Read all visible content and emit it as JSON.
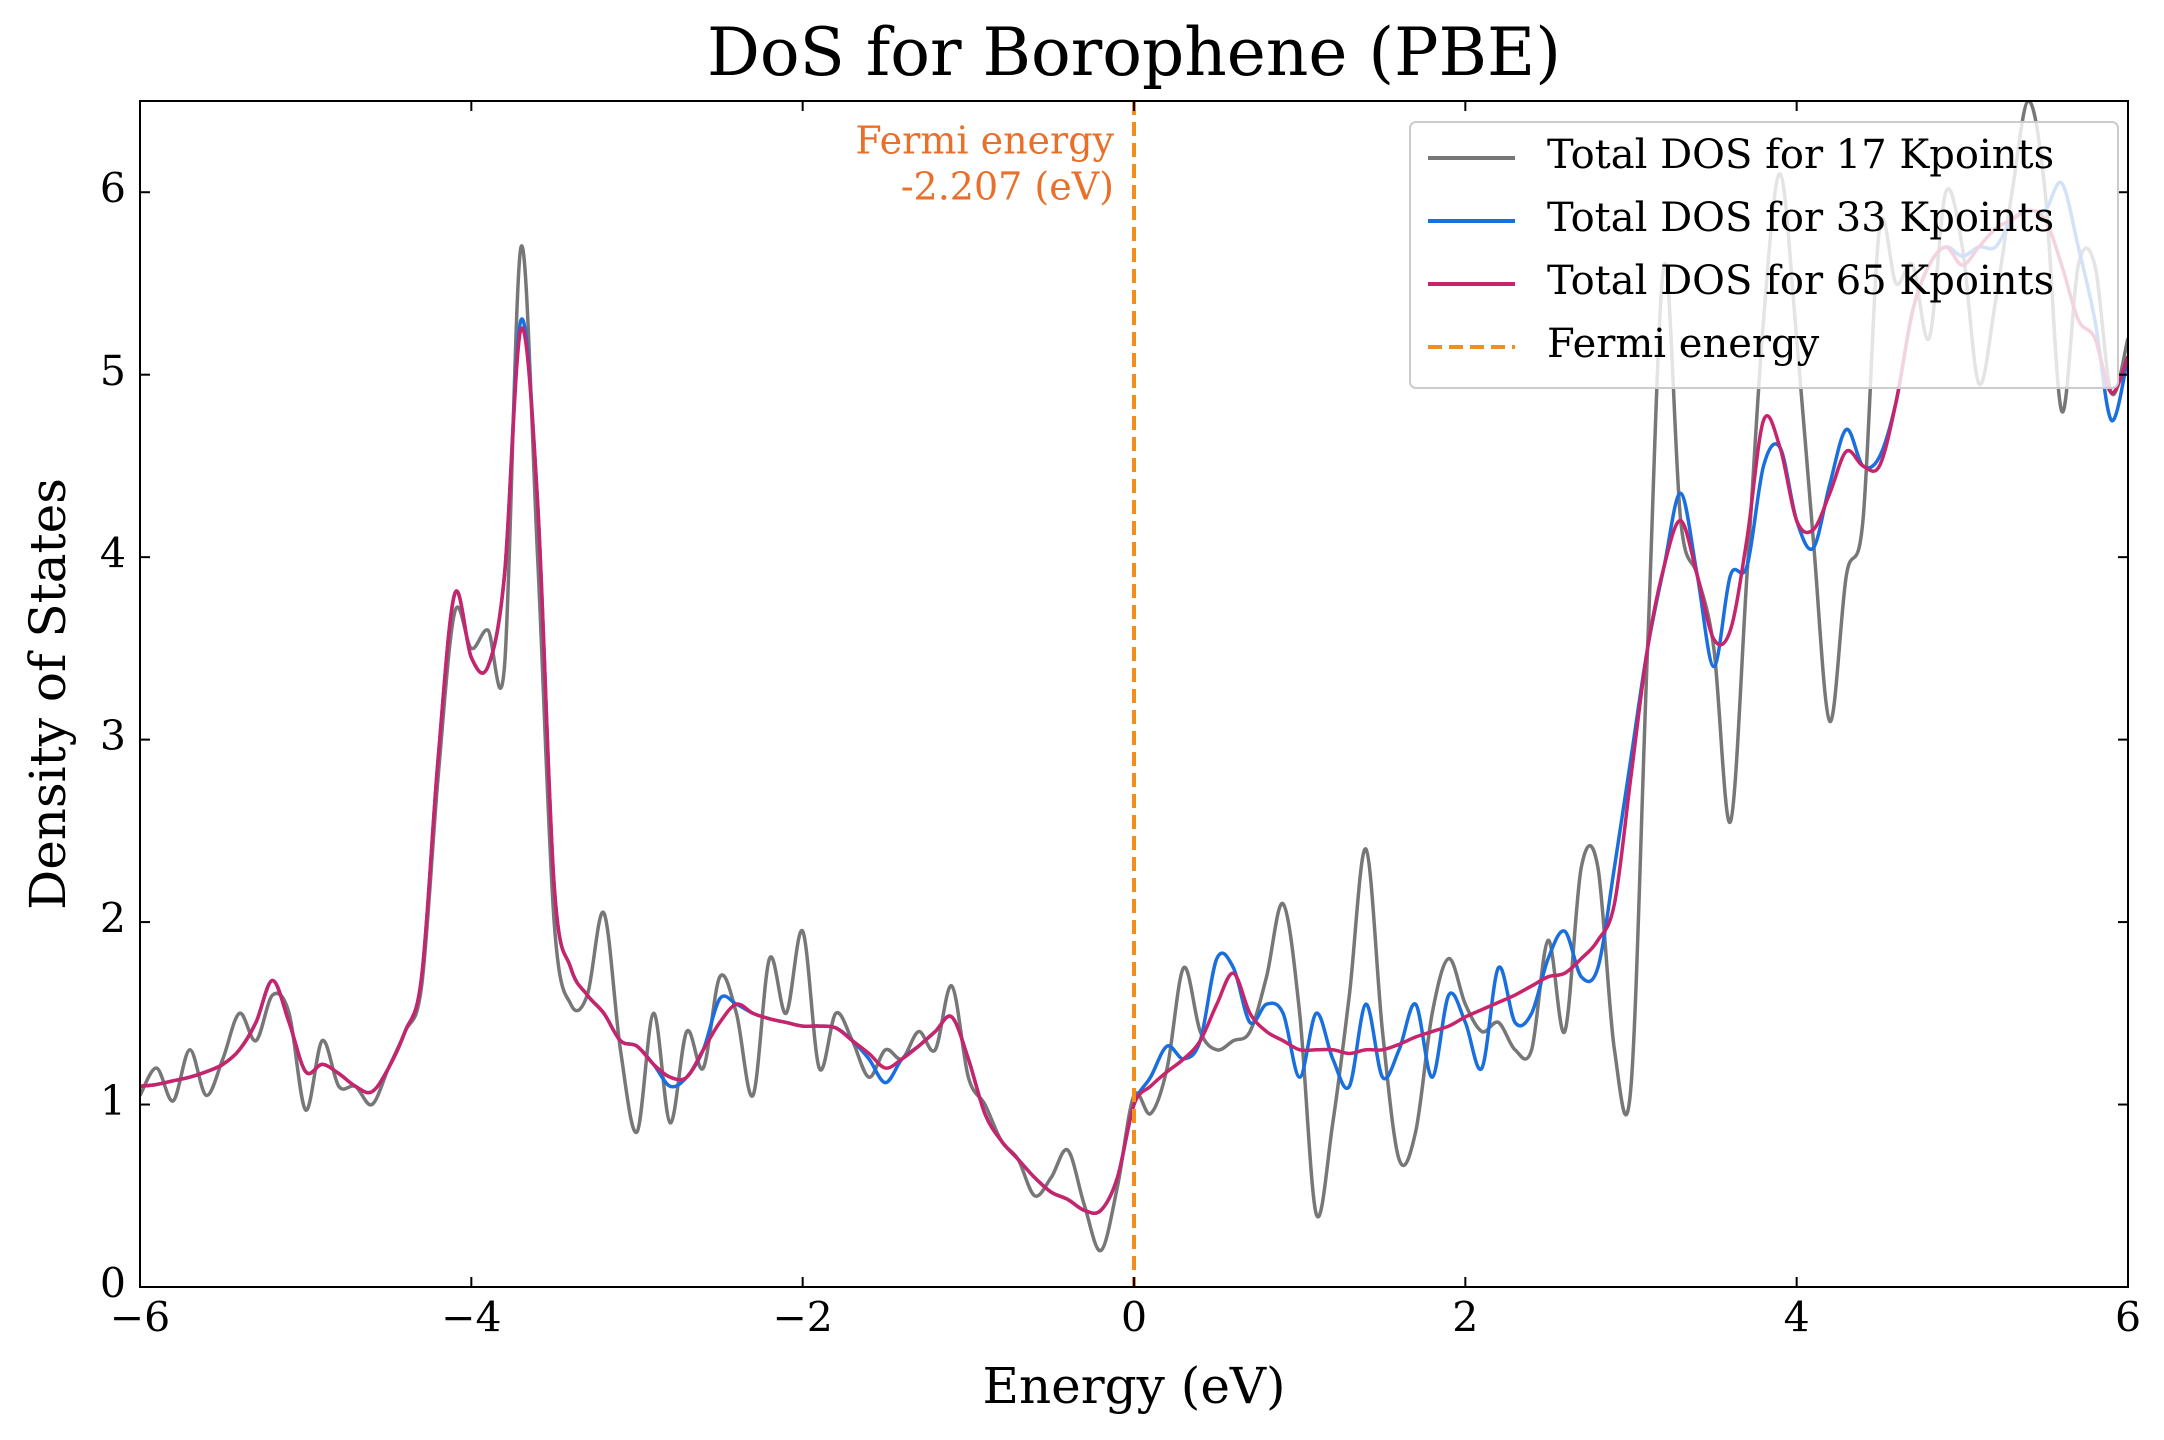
{
  "chart_data": {
    "type": "line",
    "title": "DoS for Borophene (PBE)",
    "x_label": "Energy (eV)",
    "y_label": "Density of States",
    "x": [
      -6,
      -5.9,
      -5.8,
      -5.7,
      -5.6,
      -5.5,
      -5.4,
      -5.3,
      -5.2,
      -5.1,
      -5,
      -4.9,
      -4.8,
      -4.7,
      -4.6,
      -4.5,
      -4.4,
      -4.3,
      -4.2,
      -4.1,
      -4,
      -3.9,
      -3.8,
      -3.7,
      -3.6,
      -3.5,
      -3.4,
      -3.3,
      -3.2,
      -3.1,
      -3,
      -2.9,
      -2.8,
      -2.7,
      -2.6,
      -2.5,
      -2.4,
      -2.3,
      -2.2,
      -2.1,
      -2,
      -1.9,
      -1.8,
      -1.7,
      -1.6,
      -1.5,
      -1.4,
      -1.3,
      -1.2,
      -1.1,
      -1,
      -0.9,
      -0.8,
      -0.7,
      -0.6,
      -0.5,
      -0.4,
      -0.3,
      -0.2,
      -0.1,
      0,
      0.1,
      0.2,
      0.3,
      0.4,
      0.5,
      0.6,
      0.7,
      0.8,
      0.9,
      1,
      1.1,
      1.2,
      1.3,
      1.4,
      1.5,
      1.6,
      1.7,
      1.8,
      1.9,
      2,
      2.1,
      2.2,
      2.3,
      2.4,
      2.5,
      2.6,
      2.7,
      2.8,
      2.9,
      3,
      3.1,
      3.2,
      3.3,
      3.4,
      3.5,
      3.6,
      3.7,
      3.8,
      3.9,
      4,
      4.1,
      4.2,
      4.3,
      4.4,
      4.5,
      4.6,
      4.7,
      4.8,
      4.9,
      5,
      5.1,
      5.2,
      5.3,
      5.4,
      5.5,
      5.6,
      5.7,
      5.8,
      5.9,
      6
    ],
    "series": [
      {
        "name": "Total DOS for 17 Kpoints",
        "color": "#777777",
        "values": [
          1.05,
          1.2,
          1.02,
          1.3,
          1.05,
          1.25,
          1.5,
          1.35,
          1.6,
          1.5,
          0.97,
          1.35,
          1.1,
          1.1,
          1.0,
          1.2,
          1.4,
          1.65,
          2.8,
          3.7,
          3.5,
          3.6,
          3.4,
          5.7,
          4.0,
          2.0,
          1.55,
          1.6,
          2.05,
          1.3,
          0.85,
          1.5,
          0.9,
          1.4,
          1.2,
          1.7,
          1.5,
          1.05,
          1.8,
          1.5,
          1.95,
          1.2,
          1.5,
          1.35,
          1.15,
          1.3,
          1.25,
          1.4,
          1.3,
          1.65,
          1.15,
          1.0,
          0.8,
          0.7,
          0.5,
          0.6,
          0.75,
          0.45,
          0.2,
          0.55,
          1.05,
          0.95,
          1.2,
          1.75,
          1.4,
          1.3,
          1.35,
          1.4,
          1.7,
          2.1,
          1.5,
          0.4,
          0.9,
          1.6,
          2.4,
          1.4,
          0.7,
          0.85,
          1.5,
          1.8,
          1.55,
          1.4,
          1.45,
          1.3,
          1.3,
          1.9,
          1.4,
          2.3,
          2.3,
          1.3,
          1.1,
          3.5,
          5.6,
          4.2,
          3.9,
          3.5,
          2.55,
          3.9,
          5.3,
          6.1,
          5.2,
          4.1,
          3.1,
          3.9,
          4.2,
          5.8,
          5.5,
          5.6,
          5.2,
          6.0,
          5.7,
          4.95,
          5.4,
          6.0,
          6.5,
          6.0,
          4.8,
          5.6,
          5.6,
          4.9,
          5.2
        ]
      },
      {
        "name": "Total DOS for 33 Kpoints",
        "color": "#1a6fdf",
        "values": [
          1.1,
          1.11,
          1.13,
          1.15,
          1.18,
          1.22,
          1.3,
          1.45,
          1.68,
          1.45,
          1.18,
          1.22,
          1.17,
          1.1,
          1.07,
          1.2,
          1.4,
          1.7,
          2.9,
          3.8,
          3.45,
          3.4,
          3.9,
          5.3,
          4.3,
          2.2,
          1.75,
          1.6,
          1.5,
          1.35,
          1.32,
          1.22,
          1.1,
          1.15,
          1.3,
          1.58,
          1.55,
          1.5,
          1.47,
          1.45,
          1.43,
          1.43,
          1.42,
          1.35,
          1.25,
          1.12,
          1.25,
          1.32,
          1.4,
          1.48,
          1.25,
          0.95,
          0.8,
          0.7,
          0.6,
          0.52,
          0.48,
          0.42,
          0.42,
          0.6,
          1.0,
          1.15,
          1.32,
          1.25,
          1.35,
          1.8,
          1.75,
          1.45,
          1.55,
          1.5,
          1.15,
          1.5,
          1.25,
          1.1,
          1.55,
          1.15,
          1.3,
          1.55,
          1.15,
          1.6,
          1.45,
          1.2,
          1.75,
          1.45,
          1.5,
          1.8,
          1.95,
          1.7,
          1.75,
          2.3,
          2.9,
          3.5,
          3.95,
          4.35,
          3.9,
          3.4,
          3.9,
          3.95,
          4.5,
          4.6,
          4.2,
          4.05,
          4.4,
          4.7,
          4.5,
          4.55,
          4.85,
          5.35,
          5.6,
          5.7,
          5.65,
          5.7,
          5.7,
          5.85,
          5.9,
          5.9,
          6.05,
          5.7,
          5.3,
          4.75,
          5.1
        ]
      },
      {
        "name": "Total DOS for 65 Kpoints",
        "color": "#c8246b",
        "values": [
          1.1,
          1.11,
          1.13,
          1.15,
          1.18,
          1.22,
          1.3,
          1.45,
          1.68,
          1.45,
          1.18,
          1.22,
          1.17,
          1.1,
          1.07,
          1.2,
          1.4,
          1.7,
          2.9,
          3.8,
          3.45,
          3.4,
          3.9,
          5.25,
          4.3,
          2.2,
          1.75,
          1.6,
          1.5,
          1.35,
          1.32,
          1.22,
          1.15,
          1.15,
          1.3,
          1.45,
          1.55,
          1.5,
          1.47,
          1.45,
          1.43,
          1.43,
          1.42,
          1.35,
          1.28,
          1.2,
          1.25,
          1.32,
          1.4,
          1.48,
          1.25,
          0.95,
          0.8,
          0.7,
          0.6,
          0.52,
          0.48,
          0.42,
          0.42,
          0.6,
          1.0,
          1.1,
          1.18,
          1.25,
          1.35,
          1.55,
          1.72,
          1.5,
          1.4,
          1.35,
          1.3,
          1.3,
          1.3,
          1.28,
          1.3,
          1.3,
          1.33,
          1.37,
          1.4,
          1.43,
          1.48,
          1.52,
          1.56,
          1.6,
          1.65,
          1.7,
          1.72,
          1.8,
          1.9,
          2.1,
          2.8,
          3.5,
          3.95,
          4.2,
          3.9,
          3.55,
          3.6,
          4.1,
          4.75,
          4.6,
          4.2,
          4.15,
          4.35,
          4.58,
          4.5,
          4.5,
          4.85,
          5.35,
          5.6,
          5.7,
          5.6,
          5.7,
          5.8,
          5.85,
          5.9,
          5.85,
          5.6,
          5.3,
          5.2,
          4.9,
          5.1
        ]
      }
    ],
    "fermi_line": {
      "name": "Fermi energy",
      "x": 0,
      "color": "#f28e1c"
    },
    "annotation": {
      "lines": [
        "Fermi energy",
        "-2.207 (eV)"
      ],
      "color": "#e8702a"
    },
    "xlim": [
      -6,
      6
    ],
    "ylim": [
      0,
      6.5
    ],
    "xticks": [
      {
        "value": -6,
        "label": "−6"
      },
      {
        "value": -4,
        "label": "−4"
      },
      {
        "value": -2,
        "label": "−2"
      },
      0,
      2,
      4,
      6
    ],
    "yticks": [
      0,
      1,
      2,
      3,
      4,
      5,
      6
    ],
    "legend": "upper right",
    "grid": false
  }
}
